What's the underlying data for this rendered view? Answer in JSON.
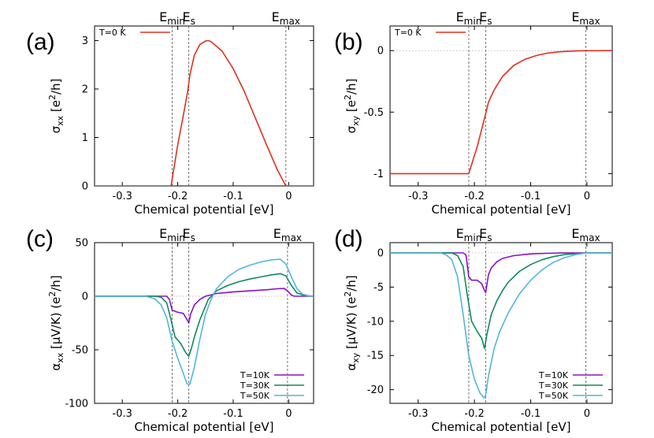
{
  "chart_data": [
    {
      "panel": "(a)",
      "type": "line",
      "xlabel": "Chemical potential [eV]",
      "ylabel": "σ_xx [e²/h]",
      "ylabel_parts": [
        "σ",
        "xx",
        " [e",
        "2",
        "/h]"
      ],
      "xlim": [
        -0.35,
        0.045
      ],
      "ylim": [
        0,
        3.3
      ],
      "xticks": [
        -0.3,
        -0.2,
        -0.1,
        0
      ],
      "xtick_labels": [
        "-0.3",
        "-0.2",
        "-0.1",
        "0"
      ],
      "yticks": [
        0,
        1,
        2,
        3
      ],
      "ytick_labels": [
        "0",
        "1",
        "2",
        "3"
      ],
      "vlines": [
        -0.21,
        -0.18,
        -0.005
      ],
      "vline_labels": [
        [
          "E",
          "min"
        ],
        [
          "E",
          "s"
        ],
        [
          "E",
          "max"
        ]
      ],
      "hline": null,
      "series": [
        {
          "name": "T=0 K",
          "color": "#e0301e",
          "x": [
            -0.35,
            -0.212,
            -0.2,
            -0.19,
            -0.182,
            -0.178,
            -0.17,
            -0.16,
            -0.15,
            -0.145,
            -0.14,
            -0.12,
            -0.1,
            -0.08,
            -0.06,
            -0.04,
            -0.02,
            -0.005,
            0.045
          ],
          "y": [
            0,
            0,
            0.85,
            1.45,
            1.95,
            2.3,
            2.7,
            2.92,
            2.99,
            3.0,
            2.98,
            2.78,
            2.42,
            1.95,
            1.4,
            0.85,
            0.32,
            0,
            0
          ]
        }
      ]
    },
    {
      "panel": "(b)",
      "type": "line",
      "xlabel": "Chemical potential [eV]",
      "ylabel": "σ_xy [e²/h]",
      "ylabel_parts": [
        "σ",
        "xy",
        " [e",
        "2",
        "/h]"
      ],
      "xlim": [
        -0.35,
        0.045
      ],
      "ylim": [
        -1.1,
        0.2
      ],
      "xticks": [
        -0.3,
        -0.2,
        -0.1,
        0
      ],
      "xtick_labels": [
        "-0.3",
        "-0.2",
        "-0.1",
        "0"
      ],
      "yticks": [
        -1,
        -0.5,
        0
      ],
      "ytick_labels": [
        "-1",
        "-0.5",
        "0"
      ],
      "vlines": [
        -0.21,
        -0.18,
        -0.002
      ],
      "vline_labels": [
        [
          "E",
          "min"
        ],
        [
          "E",
          "s"
        ],
        [
          "E",
          "max"
        ]
      ],
      "hline": 0,
      "series": [
        {
          "name": "T=0 K",
          "color": "#e0301e",
          "x": [
            -0.35,
            -0.21,
            -0.195,
            -0.182,
            -0.175,
            -0.165,
            -0.15,
            -0.13,
            -0.11,
            -0.09,
            -0.07,
            -0.05,
            -0.03,
            -0.01,
            0.045
          ],
          "y": [
            -1,
            -1,
            -0.78,
            -0.55,
            -0.42,
            -0.32,
            -0.21,
            -0.12,
            -0.07,
            -0.04,
            -0.02,
            -0.01,
            -0.004,
            -0.001,
            0
          ]
        }
      ]
    },
    {
      "panel": "(c)",
      "type": "line",
      "xlabel": "Chemical potential [eV]",
      "ylabel": "α_xx [μV/K) (e²/h)]",
      "ylabel_parts": [
        "α",
        "xx",
        " [μV/K) (e",
        "2",
        "/h]"
      ],
      "xlim": [
        -0.35,
        0.045
      ],
      "ylim": [
        -100,
        50
      ],
      "xticks": [
        -0.3,
        -0.2,
        -0.1,
        0
      ],
      "xtick_labels": [
        "-0.3",
        "-0.2",
        "-0.1",
        "0"
      ],
      "yticks": [
        -100,
        -50,
        0,
        50
      ],
      "ytick_labels": [
        "-100",
        "-50",
        "0",
        "50"
      ],
      "vlines": [
        -0.21,
        -0.18,
        -0.002
      ],
      "vline_labels": [
        [
          "E",
          "min"
        ],
        [
          "E",
          "s"
        ],
        [
          "E",
          "max"
        ]
      ],
      "hline": 0,
      "series": [
        {
          "name": "T=10K",
          "color": "#8a10c8",
          "x": [
            -0.35,
            -0.22,
            -0.215,
            -0.21,
            -0.2,
            -0.19,
            -0.183,
            -0.18,
            -0.177,
            -0.17,
            -0.16,
            -0.15,
            -0.13,
            -0.1,
            -0.07,
            -0.04,
            -0.02,
            -0.008,
            -0.002,
            0.005,
            0.01,
            0.045
          ],
          "y": [
            0,
            0,
            -3,
            -13,
            -15,
            -16,
            -22,
            -25,
            -17,
            -8,
            -3,
            0,
            2.5,
            4,
            5,
            6,
            7,
            7.2,
            5,
            1,
            0,
            0
          ]
        },
        {
          "name": "T=30K",
          "color": "#108a5a",
          "x": [
            -0.35,
            -0.24,
            -0.23,
            -0.22,
            -0.212,
            -0.205,
            -0.195,
            -0.185,
            -0.18,
            -0.175,
            -0.17,
            -0.16,
            -0.145,
            -0.13,
            -0.11,
            -0.09,
            -0.07,
            -0.05,
            -0.03,
            -0.015,
            -0.005,
            0.005,
            0.015,
            0.03,
            0.045
          ],
          "y": [
            0,
            0,
            -1,
            -6,
            -22,
            -38,
            -44,
            -53,
            -56,
            -48,
            -38,
            -22,
            -3,
            5,
            10,
            13.5,
            16,
            18,
            20,
            21,
            19,
            10,
            3,
            0.5,
            0
          ]
        },
        {
          "name": "T=50K",
          "color": "#52b5dc",
          "x": [
            -0.35,
            -0.26,
            -0.25,
            -0.24,
            -0.23,
            -0.22,
            -0.21,
            -0.2,
            -0.19,
            -0.183,
            -0.178,
            -0.17,
            -0.16,
            -0.15,
            -0.14,
            -0.13,
            -0.11,
            -0.09,
            -0.07,
            -0.05,
            -0.03,
            -0.015,
            -0.005,
            0.005,
            0.015,
            0.025,
            0.035,
            0.045
          ],
          "y": [
            0,
            0,
            -1,
            -3,
            -8,
            -20,
            -42,
            -58,
            -72,
            -82,
            -82,
            -66,
            -40,
            -17,
            -3,
            7,
            18,
            25,
            29,
            32,
            34,
            34.5,
            30,
            18,
            7,
            2,
            0.5,
            0
          ]
        }
      ]
    },
    {
      "panel": "(d)",
      "type": "line",
      "xlabel": "Chemical potential [eV]",
      "ylabel": "α_xy [μV/K) (e²/h)]",
      "ylabel_parts": [
        "α",
        "xy",
        " [μV/K) (e",
        "2",
        "/h]"
      ],
      "xlim": [
        -0.35,
        0.045
      ],
      "ylim": [
        -22,
        1.5
      ],
      "xticks": [
        -0.3,
        -0.2,
        -0.1,
        0
      ],
      "xtick_labels": [
        "-0.3",
        "-0.2",
        "-0.1",
        "0"
      ],
      "yticks": [
        -20,
        -15,
        -10,
        -5,
        0
      ],
      "ytick_labels": [
        "-20",
        "-15",
        "-10",
        "-5",
        "0"
      ],
      "vlines": [
        -0.21,
        -0.18,
        -0.002
      ],
      "vline_labels": [
        [
          "E",
          "min"
        ],
        [
          "E",
          "s"
        ],
        [
          "E",
          "max"
        ]
      ],
      "hline": 0,
      "series": [
        {
          "name": "T=10K",
          "color": "#8a10c8",
          "x": [
            -0.35,
            -0.22,
            -0.215,
            -0.21,
            -0.205,
            -0.195,
            -0.187,
            -0.182,
            -0.18,
            -0.175,
            -0.17,
            -0.16,
            -0.15,
            -0.13,
            -0.1,
            -0.07,
            -0.04,
            0,
            0.045
          ],
          "y": [
            0,
            0,
            -0.3,
            -3.5,
            -4,
            -4,
            -4.5,
            -5.5,
            -5.8,
            -3.2,
            -2.2,
            -1.3,
            -0.8,
            -0.4,
            -0.15,
            -0.05,
            -0.01,
            0,
            0
          ]
        },
        {
          "name": "T=30K",
          "color": "#108a5a",
          "x": [
            -0.35,
            -0.24,
            -0.23,
            -0.22,
            -0.213,
            -0.205,
            -0.195,
            -0.187,
            -0.182,
            -0.178,
            -0.17,
            -0.16,
            -0.15,
            -0.14,
            -0.12,
            -0.1,
            -0.08,
            -0.06,
            -0.04,
            -0.02,
            0,
            0.045
          ],
          "y": [
            0,
            0,
            -0.4,
            -2,
            -6,
            -10,
            -11.5,
            -12.5,
            -14,
            -12,
            -9,
            -7,
            -5.5,
            -4.3,
            -2.7,
            -1.7,
            -1,
            -0.55,
            -0.25,
            -0.1,
            0,
            0
          ]
        },
        {
          "name": "T=50K",
          "color": "#52b5dc",
          "x": [
            -0.35,
            -0.26,
            -0.25,
            -0.24,
            -0.23,
            -0.22,
            -0.21,
            -0.2,
            -0.19,
            -0.183,
            -0.18,
            -0.175,
            -0.165,
            -0.155,
            -0.14,
            -0.12,
            -0.1,
            -0.08,
            -0.06,
            -0.04,
            -0.02,
            0,
            0.045
          ],
          "y": [
            0,
            0,
            -0.3,
            -1,
            -3.5,
            -9,
            -15,
            -18.5,
            -20.5,
            -21.2,
            -20.8,
            -18,
            -14,
            -11.5,
            -8.8,
            -6,
            -4,
            -2.5,
            -1.4,
            -0.7,
            -0.25,
            0,
            0
          ]
        }
      ]
    }
  ]
}
